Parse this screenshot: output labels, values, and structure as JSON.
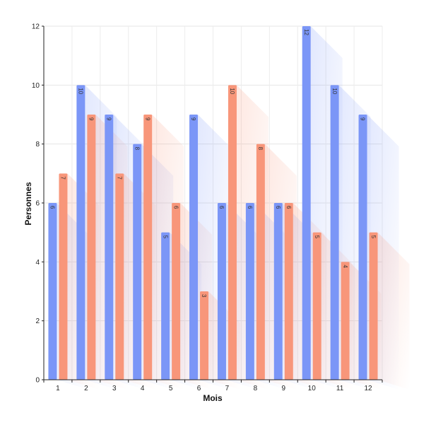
{
  "chart_data": {
    "type": "bar",
    "title": "",
    "xlabel": "Mois",
    "ylabel": "Personnes",
    "categories": [
      "1",
      "2",
      "3",
      "4",
      "5",
      "6",
      "7",
      "8",
      "9",
      "10",
      "11",
      "12"
    ],
    "series": [
      {
        "values": [
          6,
          10,
          9,
          8,
          5,
          9,
          6,
          6,
          6,
          12,
          10,
          9
        ],
        "color": "#7b96f7"
      },
      {
        "values": [
          7,
          9,
          7,
          9,
          6,
          3,
          10,
          8,
          6,
          5,
          4,
          5
        ],
        "color": "#f8967a"
      }
    ],
    "ylim": [
      0,
      12
    ],
    "yticks": [
      0,
      2,
      4,
      6,
      8,
      10,
      12
    ],
    "grid": true,
    "data_labels": true,
    "label_rotation": 90
  }
}
